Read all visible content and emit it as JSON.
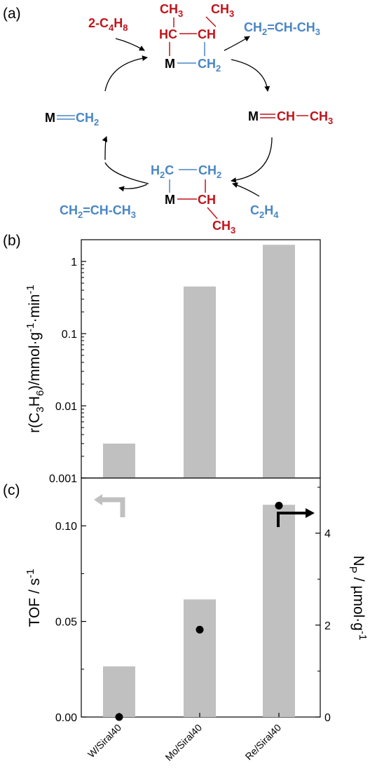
{
  "colors": {
    "red": "#c0141b",
    "blue": "#4a86c5",
    "bar": "#c0c0c0",
    "black": "#000000"
  },
  "panel_a": {
    "label": "(a)",
    "top_cycle": {
      "reactant": {
        "pre": "2-C",
        "sub1": "4",
        "mid": "H",
        "sub2": "8"
      },
      "ring_ch3_left": "CH3",
      "ring_ch3_right": "CH3",
      "ring_hc": "HC",
      "ring_ch": "CH",
      "ring_m": "M",
      "ring_ch2": "CH2",
      "product": "CH2=CH-CH3"
    },
    "left_species": {
      "m": "M",
      "ch2": "CH2"
    },
    "right_species": {
      "m": "M",
      "ch": "CH",
      "ch3": "CH3"
    },
    "bottom_cycle": {
      "ring_h2c": "H2C",
      "ring_ch2": "CH2",
      "ring_m": "M",
      "ring_ch": "CH",
      "ring_ch3": "CH3",
      "reactant": "C2H4",
      "product": "CH2=CH-CH3"
    }
  },
  "chart_data": [
    {
      "panel": "(b)",
      "type": "bar",
      "scale": "log",
      "categories": [
        "W/Siral40",
        "Mo/Siral40",
        "Re/Siral40"
      ],
      "values": [
        0.003,
        0.45,
        1.7
      ],
      "ylim": [
        0.001,
        2
      ],
      "yticks": [
        "0.001",
        "0.01",
        "0.1",
        "1"
      ],
      "ylabel": "r(C3H6)/mmol·g-1·min-1"
    },
    {
      "panel": "(c)",
      "type": "bar",
      "categories": [
        "W/Siral40",
        "Mo/Siral40",
        "Re/Siral40"
      ],
      "series": [
        {
          "axis": "left",
          "type": "bar",
          "values": [
            0.0265,
            0.0615,
            0.111
          ]
        },
        {
          "axis": "right",
          "type": "scatter",
          "values": [
            0.0,
            1.9,
            4.6
          ]
        }
      ],
      "ylim_left": [
        0,
        0.125
      ],
      "ylim_right": [
        0,
        5.2
      ],
      "yticks_left": [
        "0.00",
        "0.05",
        "0.10"
      ],
      "yticks_right": [
        "0",
        "2",
        "4"
      ],
      "ylabel_left": "TOF / s-1",
      "ylabel_right": "NP / µmol·g-1"
    }
  ]
}
